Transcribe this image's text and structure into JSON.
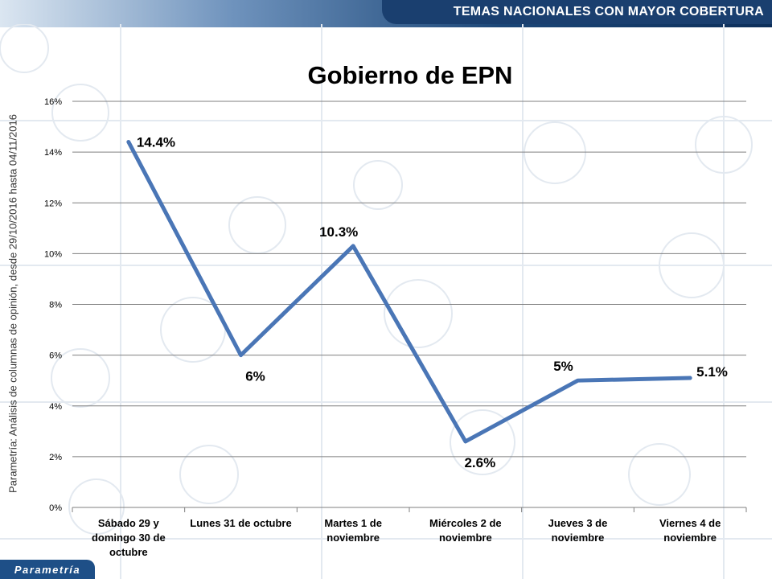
{
  "header": {
    "banner": "TEMAS NACIONALES CON MAYOR COBERTURA"
  },
  "source_note": "Parametría: Análisis de columnas de opinión, desde 29/10/2016 hasta  04/11/2016",
  "brand": {
    "logo_text": "Parametría"
  },
  "colors": {
    "line": "#4a76b6",
    "banner": "#1a3f6f",
    "grid": "#7f7f7f"
  },
  "chart_data": {
    "type": "line",
    "title": "Gobierno de EPN",
    "categories": [
      [
        "Sábado 29 y",
        "domingo 30 de",
        "octubre"
      ],
      [
        "Lunes 31 de octubre"
      ],
      [
        "Martes 1 de",
        "noviembre"
      ],
      [
        "Miércoles 2 de",
        "noviembre"
      ],
      [
        "Jueves 3 de",
        "noviembre"
      ],
      [
        "Viernes 4 de",
        "noviembre"
      ]
    ],
    "values": [
      14.4,
      6,
      10.3,
      2.6,
      5,
      5.1
    ],
    "data_labels": [
      "14.4%",
      "6%",
      "10.3%",
      "2.6%",
      "5%",
      "5.1%"
    ],
    "ylim": [
      0,
      16
    ],
    "yticks": [
      "0%",
      "2%",
      "4%",
      "6%",
      "8%",
      "10%",
      "12%",
      "14%",
      "16%"
    ],
    "grid": true,
    "legend": "none"
  }
}
